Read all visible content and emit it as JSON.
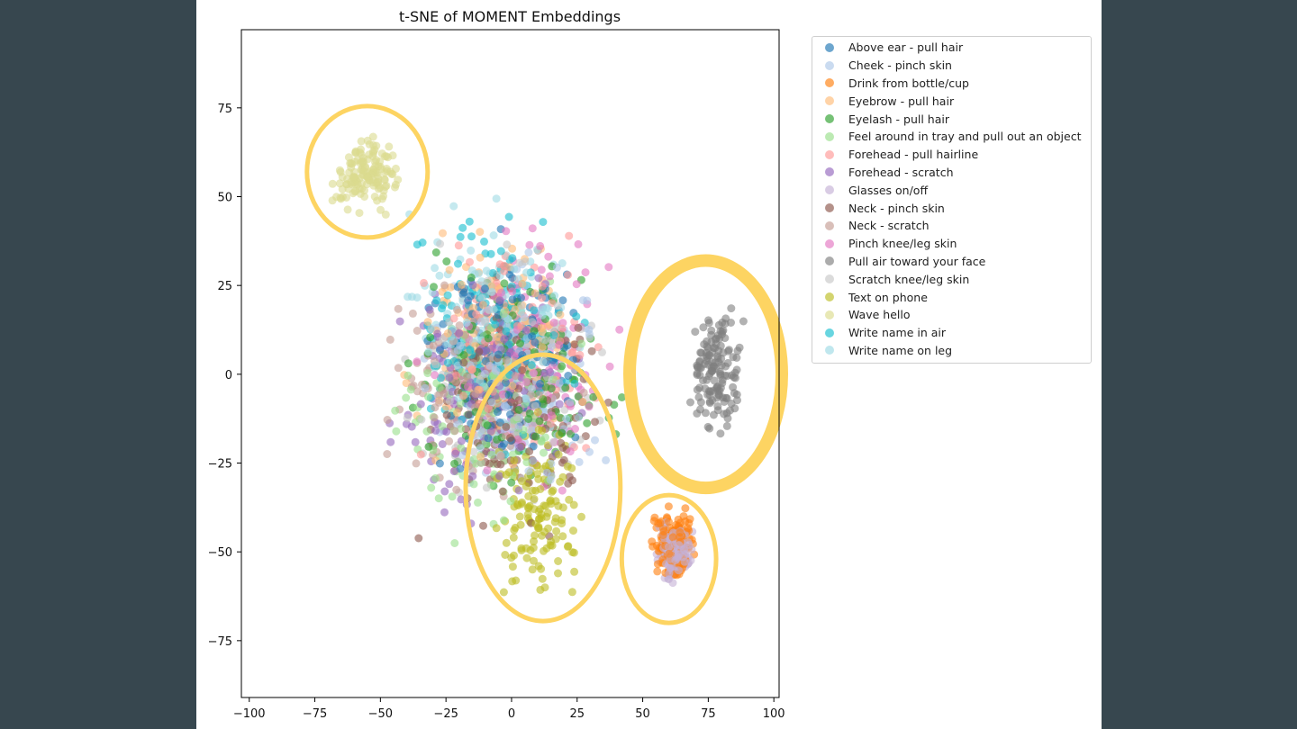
{
  "chart_data": {
    "type": "scatter",
    "title": "t-SNE of MOMENT Embeddings",
    "xlabel": "",
    "ylabel": "",
    "xlim": [
      -103,
      102
    ],
    "ylim": [
      -91,
      97
    ],
    "xticks": [
      -100,
      -75,
      -50,
      -25,
      0,
      25,
      50,
      75,
      100
    ],
    "yticks": [
      -75,
      -50,
      -25,
      0,
      25,
      50,
      75
    ],
    "xtick_labels": [
      "−100",
      "−75",
      "−50",
      "−25",
      "0",
      "25",
      "50",
      "75",
      "100"
    ],
    "ytick_labels": [
      "−75",
      "−50",
      "−25",
      "0",
      "25",
      "50",
      "75"
    ],
    "legend_position": "outside-right-top",
    "series": [
      {
        "name": "Above ear - pull hair",
        "color": "#1f77b4",
        "center": [
          -5,
          5
        ],
        "spread": [
          40,
          38
        ]
      },
      {
        "name": "Cheek - pinch skin",
        "color": "#aec7e8",
        "center": [
          0,
          0
        ],
        "spread": [
          42,
          40
        ]
      },
      {
        "name": "Drink from bottle/cup",
        "color": "#ff7f0e",
        "center": [
          62,
          -48
        ],
        "spread": [
          10,
          12
        ]
      },
      {
        "name": "Eyebrow - pull hair",
        "color": "#ffbb78",
        "center": [
          -5,
          10
        ],
        "spread": [
          40,
          36
        ]
      },
      {
        "name": "Eyelash - pull hair",
        "color": "#2ca02c",
        "center": [
          0,
          0
        ],
        "spread": [
          45,
          40
        ]
      },
      {
        "name": "Feel around in tray and pull out an object",
        "color": "#98df8a",
        "center": [
          -10,
          -10
        ],
        "spread": [
          40,
          40
        ]
      },
      {
        "name": "Forehead - pull hairline",
        "color": "#ff9896",
        "center": [
          0,
          5
        ],
        "spread": [
          40,
          38
        ]
      },
      {
        "name": "Forehead - scratch",
        "color": "#9467bd",
        "center": [
          -10,
          -5
        ],
        "spread": [
          42,
          40
        ]
      },
      {
        "name": "Glasses on/off",
        "color": "#c5b0d5",
        "center": [
          62,
          -50
        ],
        "spread": [
          8,
          10
        ]
      },
      {
        "name": "Neck - pinch skin",
        "color": "#8c564b",
        "center": [
          0,
          -10
        ],
        "spread": [
          42,
          40
        ]
      },
      {
        "name": "Neck - scratch",
        "color": "#c49c94",
        "center": [
          -15,
          0
        ],
        "spread": [
          40,
          40
        ]
      },
      {
        "name": "Pinch knee/leg skin",
        "color": "#e377c2",
        "center": [
          5,
          5
        ],
        "spread": [
          40,
          40
        ]
      },
      {
        "name": "Pull air toward your face",
        "color": "#7f7f7f",
        "center": [
          78,
          0
        ],
        "spread": [
          12,
          22
        ]
      },
      {
        "name": "Scratch knee/leg skin",
        "color": "#c7c7c7",
        "center": [
          0,
          0
        ],
        "spread": [
          42,
          40
        ]
      },
      {
        "name": "Text on phone",
        "color": "#bcbd22",
        "center": [
          10,
          -38
        ],
        "spread": [
          18,
          30
        ]
      },
      {
        "name": "Wave hello",
        "color": "#dbdb8d",
        "center": [
          -55,
          57
        ],
        "spread": [
          15,
          13
        ]
      },
      {
        "name": "Write name in air",
        "color": "#17becf",
        "center": [
          -10,
          10
        ],
        "spread": [
          40,
          38
        ]
      },
      {
        "name": "Write name on leg",
        "color": "#9edae5",
        "center": [
          -5,
          15
        ],
        "spread": [
          40,
          36
        ]
      }
    ],
    "highlights": [
      {
        "name": "ellipse-wave-hello",
        "center": [
          -55,
          57
        ],
        "radii": [
          23,
          18.5
        ]
      },
      {
        "name": "ellipse-text-on-phone",
        "center": [
          12,
          -32
        ],
        "radii": [
          29.5,
          37.5
        ]
      },
      {
        "name": "ellipse-pull-air",
        "center": [
          74,
          0
        ],
        "radii": [
          29,
          32
        ]
      },
      {
        "name": "ellipse-drink-glasses",
        "center": [
          60,
          -52
        ],
        "radii": [
          18,
          18
        ]
      }
    ],
    "highlight_color": "#fdd462"
  }
}
